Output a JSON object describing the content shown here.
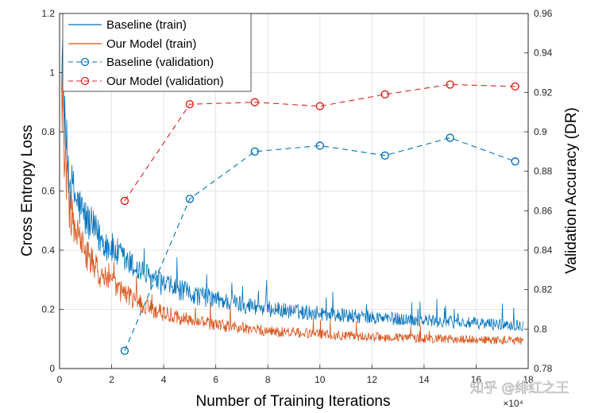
{
  "chart_data": {
    "type": "line",
    "xlabel": "Number of Training Iterations",
    "x_multiplier_label": "×10⁴",
    "ylabel_left": "Cross Entropy Loss",
    "ylabel_right": "Validation Accuracy (DR)",
    "xlim": [
      0,
      18
    ],
    "ylim_left": [
      0,
      1.2
    ],
    "ylim_right": [
      0.78,
      0.96
    ],
    "x_ticks": [
      "0",
      "2",
      "4",
      "6",
      "8",
      "10",
      "12",
      "14",
      "16",
      "18"
    ],
    "y_ticks_left": [
      "0",
      "0.2",
      "0.4",
      "0.6",
      "0.8",
      "1",
      "1.2"
    ],
    "y_ticks_right": [
      "0.78",
      "0.8",
      "0.82",
      "0.84",
      "0.86",
      "0.88",
      "0.9",
      "0.92",
      "0.94",
      "0.96"
    ],
    "grid": true,
    "legend_position": "top-left",
    "colors": {
      "baseline": "#0072bd",
      "our_model": "#d95319",
      "validation_our": "#e0201b"
    },
    "series": [
      {
        "name": "Baseline (train)",
        "axis": "left",
        "style": "solid",
        "color": "#0072bd",
        "x": [
          0.08,
          0.2,
          0.4,
          0.7,
          1.0,
          1.5,
          2.0,
          2.5,
          3.0,
          3.5,
          4.0,
          5.0,
          6.0,
          7.0,
          8.0,
          9.0,
          10.0,
          11.0,
          12.0,
          13.0,
          14.0,
          15.0,
          16.0,
          17.0,
          17.8
        ],
        "values": [
          1.07,
          0.8,
          0.62,
          0.55,
          0.5,
          0.44,
          0.4,
          0.36,
          0.33,
          0.3,
          0.28,
          0.25,
          0.23,
          0.215,
          0.2,
          0.19,
          0.185,
          0.175,
          0.17,
          0.165,
          0.16,
          0.155,
          0.15,
          0.148,
          0.145
        ]
      },
      {
        "name": "Our Model (train)",
        "axis": "left",
        "style": "solid",
        "color": "#d95319",
        "x": [
          0.08,
          0.2,
          0.4,
          0.7,
          1.0,
          1.5,
          2.0,
          2.5,
          3.0,
          3.5,
          4.0,
          5.0,
          6.0,
          7.0,
          8.0,
          9.0,
          10.0,
          11.0,
          12.0,
          13.0,
          14.0,
          15.0,
          16.0,
          17.0,
          17.8
        ],
        "values": [
          0.95,
          0.7,
          0.52,
          0.44,
          0.38,
          0.32,
          0.28,
          0.25,
          0.22,
          0.2,
          0.185,
          0.16,
          0.145,
          0.135,
          0.125,
          0.12,
          0.115,
          0.11,
          0.105,
          0.103,
          0.1,
          0.098,
          0.096,
          0.094,
          0.092
        ]
      },
      {
        "name": "Baseline (validation)",
        "axis": "right",
        "style": "dashed-circle",
        "color": "#0072bd",
        "x": [
          2.5,
          5.0,
          7.5,
          10.0,
          12.5,
          15.0,
          17.5
        ],
        "values": [
          0.789,
          0.866,
          0.89,
          0.893,
          0.888,
          0.897,
          0.885
        ]
      },
      {
        "name": "Our Model (validation)",
        "axis": "right",
        "style": "dashed-circle",
        "color": "#e0201b",
        "x": [
          2.5,
          5.0,
          7.5,
          10.0,
          12.5,
          15.0,
          17.5
        ],
        "values": [
          0.865,
          0.914,
          0.915,
          0.913,
          0.919,
          0.924,
          0.923
        ]
      }
    ]
  },
  "watermark": "知乎 @绯红之王"
}
